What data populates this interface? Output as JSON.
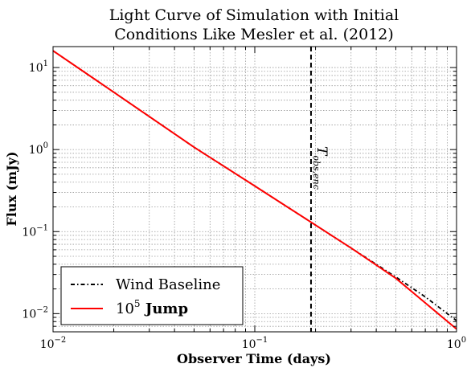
{
  "chart_data": {
    "type": "line",
    "title_line1": "Light Curve of Simulation with Initial",
    "title_line2": "Conditions Like Mesler et al. (2012)",
    "xlabel": "Observer Time (days)",
    "ylabel": "Flux (mJy)",
    "xscale": "log",
    "yscale": "log",
    "xlim": [
      0.01,
      1
    ],
    "ylim": [
      0.006,
      18
    ],
    "grid": true,
    "legend_position": "bottom-left",
    "x_ticks": [
      {
        "value": 0.01,
        "base": "10",
        "exp": "−2"
      },
      {
        "value": 0.1,
        "base": "10",
        "exp": "−1"
      },
      {
        "value": 1,
        "base": "10",
        "exp": "0"
      }
    ],
    "y_ticks": [
      {
        "value": 0.01,
        "base": "10",
        "exp": "−2"
      },
      {
        "value": 0.1,
        "base": "10",
        "exp": "−1"
      },
      {
        "value": 1,
        "base": "10",
        "exp": "0"
      },
      {
        "value": 10,
        "base": "10",
        "exp": "1"
      }
    ],
    "series": [
      {
        "name": "Wind Baseline",
        "color": "#000000",
        "style": "dashdot",
        "x": [
          0.01,
          0.02,
          0.05,
          0.1,
          0.2,
          0.3,
          0.5,
          0.7,
          1.0
        ],
        "y": [
          16.0,
          5.0,
          1.07,
          0.36,
          0.12,
          0.063,
          0.028,
          0.016,
          0.0082
        ]
      },
      {
        "name": "Jump",
        "legend_prefix": "10",
        "legend_sup": "5",
        "color": "#ff0000",
        "style": "solid",
        "x": [
          0.01,
          0.02,
          0.05,
          0.1,
          0.2,
          0.3,
          0.5,
          0.7,
          1.0
        ],
        "y": [
          16.0,
          5.0,
          1.07,
          0.36,
          0.12,
          0.063,
          0.027,
          0.0135,
          0.0065
        ]
      }
    ],
    "vline": {
      "x": 0.19,
      "color": "#000000",
      "style": "dashed",
      "label": "T",
      "label_sub": "obs,enc"
    }
  }
}
